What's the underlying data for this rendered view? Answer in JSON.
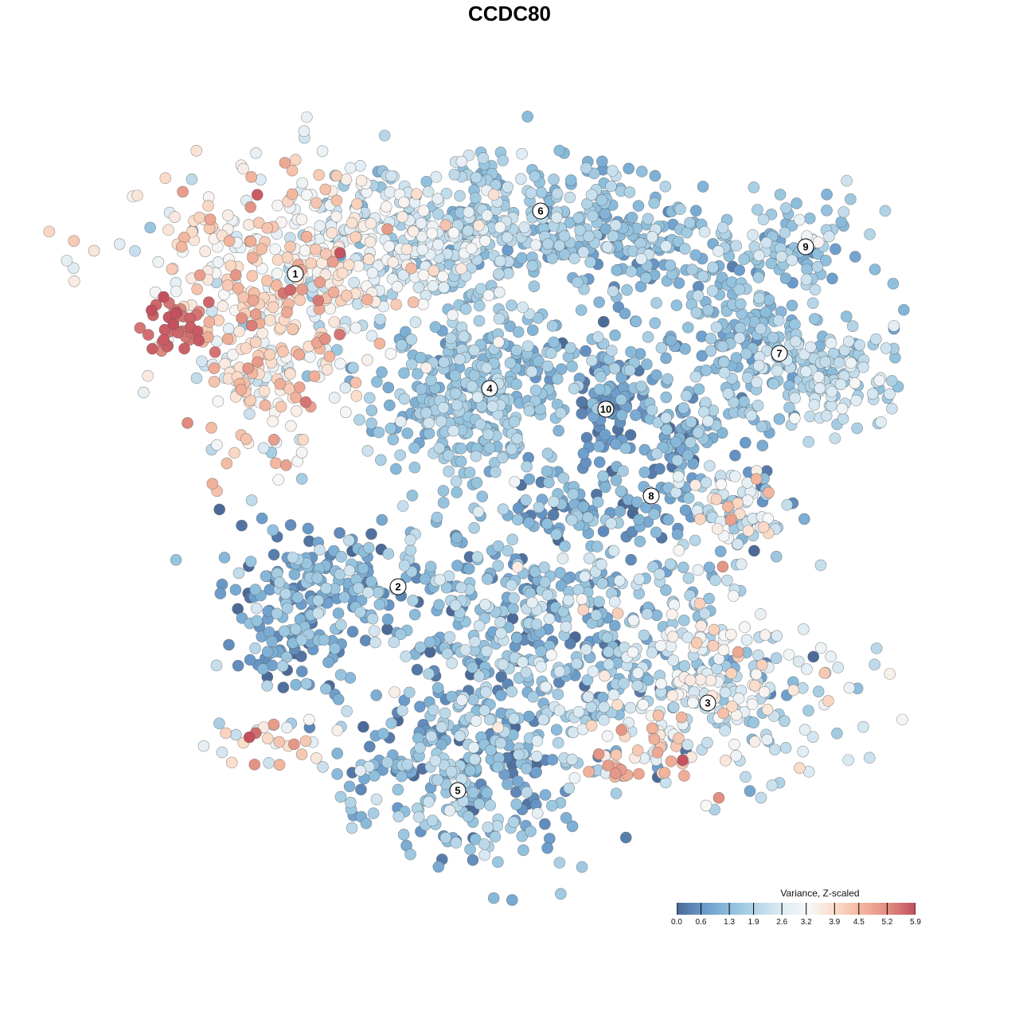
{
  "chart_data": {
    "type": "scatter",
    "title": "CCDC80",
    "xlabel": "",
    "ylabel": "",
    "xlim": [
      -64,
      64
    ],
    "ylim": [
      -64,
      64
    ],
    "grid": false,
    "legend": {
      "title": "Variance, Z-scaled",
      "position": "bottom-right",
      "ticks": [
        "0.0",
        "0.6",
        "1.3",
        "1.9",
        "2.6",
        "3.2",
        "3.9",
        "4.5",
        "5.2",
        "5.9"
      ],
      "range": [
        0,
        5.9
      ],
      "colors": [
        "#4c6a98",
        "#6a9bcb",
        "#8ebfdc",
        "#b6d6e8",
        "#dfecf4",
        "#f7f7f7",
        "#fbdcc9",
        "#f2b49c",
        "#e08c80",
        "#c4505e"
      ]
    },
    "clusters": [
      {
        "label": "1",
        "x": -26.9,
        "y": 29.6
      },
      {
        "label": "2",
        "x": -14,
        "y": -9.7
      },
      {
        "label": "3",
        "x": 24.9,
        "y": -24.3
      },
      {
        "label": "4",
        "x": -2.5,
        "y": 15.2
      },
      {
        "label": "5",
        "x": -6.5,
        "y": -35.3
      },
      {
        "label": "6",
        "x": 3.9,
        "y": 37.5
      },
      {
        "label": "7",
        "x": 33.9,
        "y": 19.6
      },
      {
        "label": "8",
        "x": 17.8,
        "y": 1.7
      },
      {
        "label": "9",
        "x": 37.2,
        "y": 33
      },
      {
        "label": "10",
        "x": 12.1,
        "y": 12.6
      }
    ],
    "point_groups": [
      {
        "x": -30,
        "y": 30,
        "sx": 8,
        "sy": 7,
        "n": 320,
        "mean": 3.6,
        "sd": 0.8
      },
      {
        "x": -42,
        "y": 23,
        "sx": 2,
        "sy": 2,
        "n": 40,
        "mean": 5.6,
        "sd": 0.2
      },
      {
        "x": -31,
        "y": 16,
        "sx": 5,
        "sy": 6,
        "n": 120,
        "mean": 3.5,
        "sd": 0.9
      },
      {
        "x": -15,
        "y": 33,
        "sx": 7,
        "sy": 5,
        "n": 150,
        "mean": 2.6,
        "sd": 0.6
      },
      {
        "x": -8,
        "y": 35,
        "sx": 8,
        "sy": 5,
        "n": 160,
        "mean": 2.0,
        "sd": 0.6
      },
      {
        "x": 4,
        "y": 36,
        "sx": 10,
        "sy": 4,
        "n": 220,
        "mean": 1.6,
        "sd": 0.5
      },
      {
        "x": 16,
        "y": 33,
        "sx": 5,
        "sy": 4,
        "n": 110,
        "mean": 1.1,
        "sd": 0.4
      },
      {
        "x": 36,
        "y": 33,
        "sx": 5,
        "sy": 2.5,
        "n": 90,
        "mean": 1.6,
        "sd": 0.5
      },
      {
        "x": 28,
        "y": 24,
        "sx": 5,
        "sy": 3,
        "n": 80,
        "mean": 1.3,
        "sd": 0.4
      },
      {
        "x": 34,
        "y": 19,
        "sx": 7,
        "sy": 2.5,
        "n": 110,
        "mean": 1.5,
        "sd": 0.5
      },
      {
        "x": 41,
        "y": 16,
        "sx": 4,
        "sy": 3,
        "n": 80,
        "mean": 2.2,
        "sd": 0.5
      },
      {
        "x": -5,
        "y": 14,
        "sx": 6,
        "sy": 6,
        "n": 330,
        "mean": 1.5,
        "sd": 0.4
      },
      {
        "x": 8,
        "y": 18,
        "sx": 6,
        "sy": 2,
        "n": 60,
        "mean": 1.4,
        "sd": 0.5
      },
      {
        "x": 12,
        "y": 13,
        "sx": 2,
        "sy": 4,
        "n": 70,
        "mean": 0.5,
        "sd": 0.3
      },
      {
        "x": 22,
        "y": 12,
        "sx": 6,
        "sy": 2,
        "n": 70,
        "mean": 1.2,
        "sd": 0.5
      },
      {
        "x": 21,
        "y": 7,
        "sx": 2,
        "sy": 3,
        "n": 50,
        "mean": 0.8,
        "sd": 0.4
      },
      {
        "x": 28,
        "y": 0,
        "sx": 4,
        "sy": 3,
        "n": 90,
        "mean": 2.4,
        "sd": 1.2
      },
      {
        "x": 10,
        "y": 1,
        "sx": 6,
        "sy": 2,
        "n": 60,
        "mean": 0.9,
        "sd": 0.5
      },
      {
        "x": -24,
        "y": -9,
        "sx": 6,
        "sy": 3,
        "n": 150,
        "mean": 1.0,
        "sd": 0.6
      },
      {
        "x": -27,
        "y": -17,
        "sx": 4,
        "sy": 3,
        "n": 80,
        "mean": 0.8,
        "sd": 0.6
      },
      {
        "x": 3,
        "y": -14,
        "sx": 11,
        "sy": 8,
        "n": 450,
        "mean": 1.3,
        "sd": 0.7
      },
      {
        "x": 24,
        "y": -22,
        "sx": 9,
        "sy": 6,
        "n": 280,
        "mean": 2.5,
        "sd": 0.9
      },
      {
        "x": 17,
        "y": -31,
        "sx": 4,
        "sy": 3,
        "n": 40,
        "mean": 4.2,
        "sd": 0.8
      },
      {
        "x": -5,
        "y": -32,
        "sx": 8,
        "sy": 6,
        "n": 300,
        "mean": 1.3,
        "sd": 0.7
      },
      {
        "x": -30,
        "y": -29,
        "sx": 4,
        "sy": 2,
        "n": 30,
        "mean": 3.5,
        "sd": 1
      }
    ]
  }
}
